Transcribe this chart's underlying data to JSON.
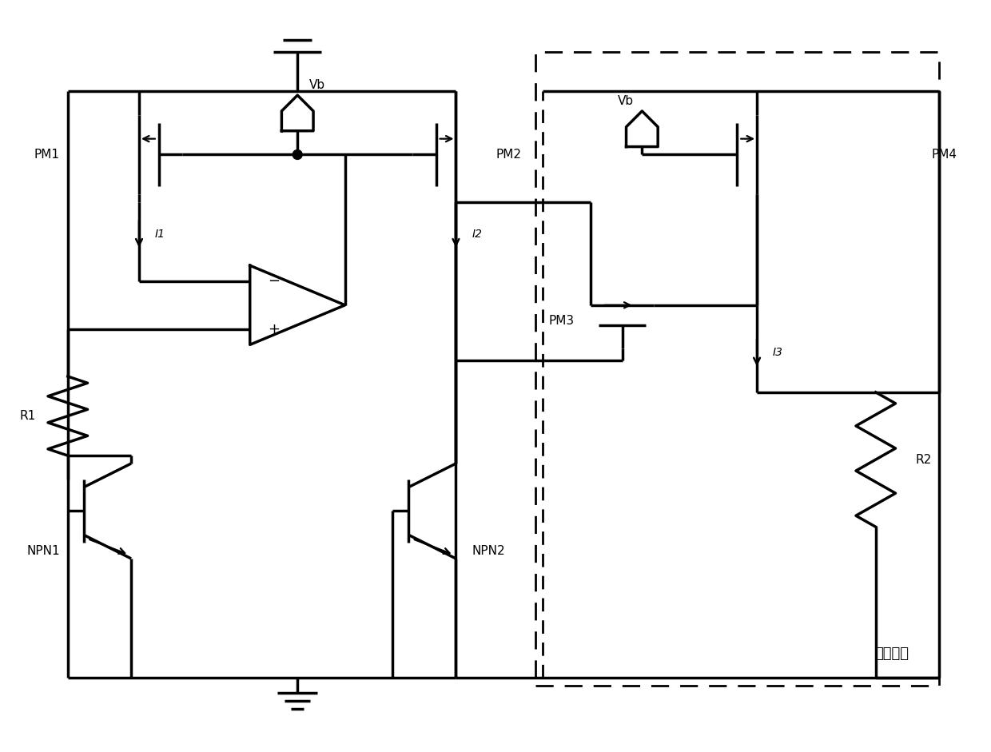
{
  "bg_color": "#ffffff",
  "line_color": "#000000",
  "line_width": 2.5,
  "fig_width": 12.4,
  "fig_height": 9.41,
  "xlim": [
    0,
    124
  ],
  "ylim": [
    0,
    94.1
  ]
}
